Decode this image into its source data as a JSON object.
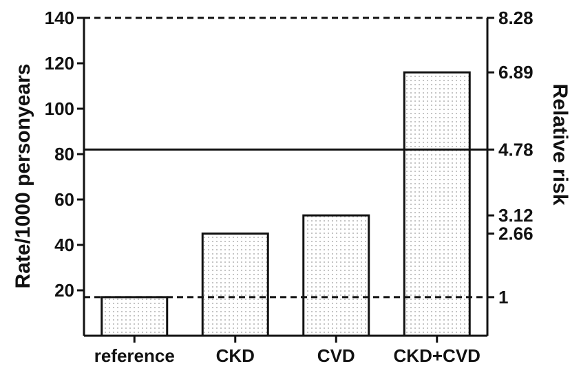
{
  "chart_data": {
    "type": "bar",
    "categories": [
      "reference",
      "CKD",
      "CVD",
      "CKD+CVD"
    ],
    "values": [
      17,
      45,
      53,
      116
    ],
    "ylabel": "Rate/1000 personyears",
    "y2label": "Relative risk",
    "ylim": [
      0,
      140
    ],
    "left_ticks": [
      20,
      40,
      60,
      80,
      100,
      120,
      140
    ],
    "right_ticks": [
      {
        "label": "8.28",
        "at": 140
      },
      {
        "label": "6.89",
        "at": 116
      },
      {
        "label": "4.78",
        "at": 82
      },
      {
        "label": "3.12",
        "at": 53
      },
      {
        "label": "2.66",
        "at": 45
      },
      {
        "label": "1",
        "at": 17
      }
    ],
    "reference_lines": [
      {
        "at": 140,
        "style": "dashed"
      },
      {
        "at": 82,
        "style": "solid"
      },
      {
        "at": 17,
        "style": "dashed"
      }
    ],
    "bar_fill": "dotted light gray",
    "grid": false
  }
}
